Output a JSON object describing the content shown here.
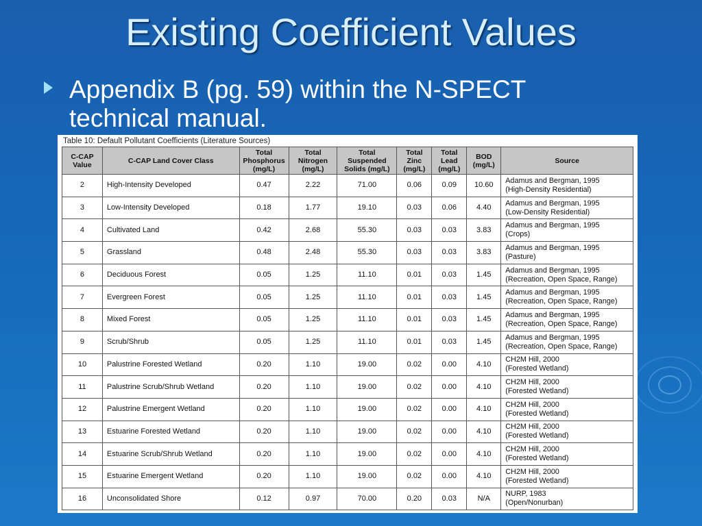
{
  "slide": {
    "title": "Existing Coefficient Values",
    "bullet": "Appendix B (pg. 59) within the N-SPECT technical manual."
  },
  "table": {
    "caption": "Table 10: Default Pollutant Coefficients (Literature Sources)",
    "headers": {
      "value": "C-CAP Value",
      "class": "C-CAP Land Cover Class",
      "tp": "Total Phosphorus (mg/L)",
      "tn": "Total Nitrogen (mg/L)",
      "tss": "Total Suspended Solids (mg/L)",
      "zn": "Total Zinc (mg/L)",
      "pb": "Total Lead (mg/L)",
      "bod": "BOD (mg/L)",
      "source": "Source"
    },
    "rows": [
      {
        "v": "2",
        "cls": "High-Intensity Developed",
        "tp": "0.47",
        "tn": "2.22",
        "tss": "71.00",
        "zn": "0.06",
        "pb": "0.09",
        "bod": "10.60",
        "s1": "Adamus and Bergman, 1995",
        "s2": "(High-Density Residential)"
      },
      {
        "v": "3",
        "cls": "Low-Intensity Developed",
        "tp": "0.18",
        "tn": "1.77",
        "tss": "19.10",
        "zn": "0.03",
        "pb": "0.06",
        "bod": "4.40",
        "s1": "Adamus and Bergman, 1995",
        "s2": "(Low-Density Residential)"
      },
      {
        "v": "4",
        "cls": "Cultivated Land",
        "tp": "0.42",
        "tn": "2.68",
        "tss": "55.30",
        "zn": "0.03",
        "pb": "0.03",
        "bod": "3.83",
        "s1": "Adamus and Bergman, 1995",
        "s2": "(Crops)"
      },
      {
        "v": "5",
        "cls": "Grassland",
        "tp": "0.48",
        "tn": "2.48",
        "tss": "55.30",
        "zn": "0.03",
        "pb": "0.03",
        "bod": "3.83",
        "s1": "Adamus and Bergman, 1995",
        "s2": "(Pasture)"
      },
      {
        "v": "6",
        "cls": "Deciduous Forest",
        "tp": "0.05",
        "tn": "1.25",
        "tss": "11.10",
        "zn": "0.01",
        "pb": "0.03",
        "bod": "1.45",
        "s1": "Adamus and Bergman, 1995",
        "s2": "(Recreation, Open Space, Range)"
      },
      {
        "v": "7",
        "cls": "Evergreen Forest",
        "tp": "0.05",
        "tn": "1.25",
        "tss": "11.10",
        "zn": "0.01",
        "pb": "0.03",
        "bod": "1.45",
        "s1": "Adamus and Bergman, 1995",
        "s2": "(Recreation, Open Space, Range)"
      },
      {
        "v": "8",
        "cls": "Mixed Forest",
        "tp": "0.05",
        "tn": "1.25",
        "tss": "11.10",
        "zn": "0.01",
        "pb": "0.03",
        "bod": "1.45",
        "s1": "Adamus and Bergman, 1995",
        "s2": "(Recreation, Open Space, Range)"
      },
      {
        "v": "9",
        "cls": "Scrub/Shrub",
        "tp": "0.05",
        "tn": "1.25",
        "tss": "11.10",
        "zn": "0.01",
        "pb": "0.03",
        "bod": "1.45",
        "s1": "Adamus and Bergman, 1995",
        "s2": "(Recreation, Open Space, Range)"
      },
      {
        "v": "10",
        "cls": "Palustrine Forested Wetland",
        "tp": "0.20",
        "tn": "1.10",
        "tss": "19.00",
        "zn": "0.02",
        "pb": "0.00",
        "bod": "4.10",
        "s1": "CH2M Hill, 2000",
        "s2": "(Forested Wetland)"
      },
      {
        "v": "11",
        "cls": "Palustrine Scrub/Shrub Wetland",
        "tp": "0.20",
        "tn": "1.10",
        "tss": "19.00",
        "zn": "0.02",
        "pb": "0.00",
        "bod": "4.10",
        "s1": "CH2M Hill, 2000",
        "s2": "(Forested Wetland)"
      },
      {
        "v": "12",
        "cls": "Palustrine Emergent Wetland",
        "tp": "0.20",
        "tn": "1.10",
        "tss": "19.00",
        "zn": "0.02",
        "pb": "0.00",
        "bod": "4.10",
        "s1": "CH2M Hill, 2000",
        "s2": "(Forested Wetland)"
      },
      {
        "v": "13",
        "cls": "Estuarine Forested Wetland",
        "tp": "0.20",
        "tn": "1.10",
        "tss": "19.00",
        "zn": "0.02",
        "pb": "0.00",
        "bod": "4.10",
        "s1": "CH2M Hill, 2000",
        "s2": "(Forested Wetland)"
      },
      {
        "v": "14",
        "cls": "Estuarine Scrub/Shrub Wetland",
        "tp": "0.20",
        "tn": "1.10",
        "tss": "19.00",
        "zn": "0.02",
        "pb": "0.00",
        "bod": "4.10",
        "s1": "CH2M Hill, 2000",
        "s2": "(Forested Wetland)"
      },
      {
        "v": "15",
        "cls": "Estuarine Emergent Wetland",
        "tp": "0.20",
        "tn": "1.10",
        "tss": "19.00",
        "zn": "0.02",
        "pb": "0.00",
        "bod": "4.10",
        "s1": "CH2M Hill, 2000",
        "s2": "(Forested Wetland)"
      },
      {
        "v": "16",
        "cls": "Unconsolidated Shore",
        "tp": "0.12",
        "tn": "0.97",
        "tss": "70.00",
        "zn": "0.20",
        "pb": "0.03",
        "bod": "N/A",
        "s1": "NURP, 1983",
        "s2": "(Open/Nonurban)"
      }
    ]
  },
  "colors": {
    "background": "#1666b8",
    "title": "#d7eefb",
    "bullet_arrow": "#9fe0f5",
    "header_fill": "#c6c6c6"
  }
}
